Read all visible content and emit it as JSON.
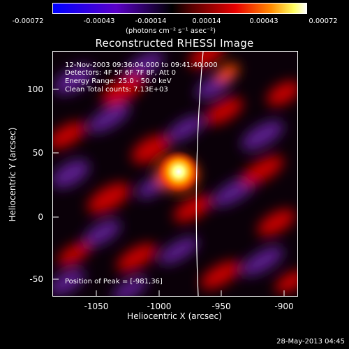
{
  "colorbar": {
    "ticks": [
      "-0.00072",
      "-0.00043",
      "-0.00014",
      "0.00014",
      "0.00043",
      "0.00072"
    ],
    "unit_label": "(photons cm⁻² s⁻¹ asec⁻²)"
  },
  "title": "Reconstructed RHESSI Image",
  "info": {
    "time_range": "12-Nov-2003 09:36:04.000 to 09:41:40.000",
    "detectors": "Detectors: 4F 5F 6F 7F 8F, Att 0",
    "energy_range": "Energy Range: 25.0 - 50.0 keV",
    "algorithm": "Clean     Total counts: 7.13E+03",
    "peak": "Position of Peak = [-981,36]"
  },
  "axes": {
    "xlabel": "Heliocentric X (arcsec)",
    "ylabel": "Heliocentric Y (arcsec)",
    "xticks": [
      "-1050",
      "-1000",
      "-950",
      "-900"
    ],
    "yticks": [
      "100",
      "50",
      "0",
      "-50"
    ]
  },
  "footer": {
    "date": "28-May-2013 04:45"
  }
}
